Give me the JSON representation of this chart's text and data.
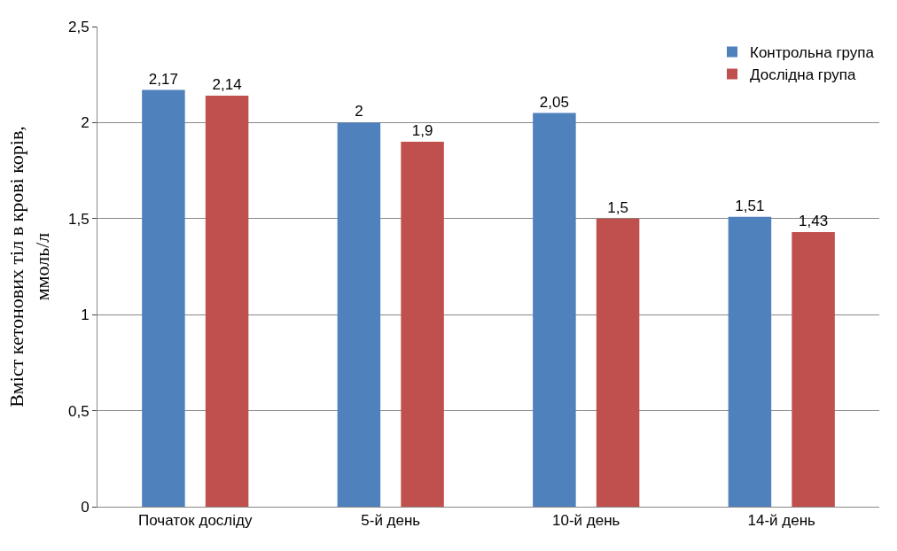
{
  "chart_data": {
    "type": "bar",
    "ylabel": "Вміст кетонових тіл в крові корів,\nммоль/л",
    "categories": [
      "Початок досліду",
      "5-й день",
      "10-й день",
      "14-й день"
    ],
    "series": [
      {
        "name": "Контрольна група",
        "color": "#4f81bd",
        "values": [
          2.17,
          2.0,
          2.05,
          1.51
        ],
        "value_labels": [
          "2,17",
          "2",
          "2,05",
          "1,51"
        ]
      },
      {
        "name": "Дослідна група",
        "color": "#c0504d",
        "values": [
          2.14,
          1.9,
          1.5,
          1.43
        ],
        "value_labels": [
          "2,14",
          "1,9",
          "1,5",
          "1,43"
        ]
      }
    ],
    "ylim": [
      0,
      2.5
    ],
    "yticks": [
      0,
      {
        "value": 0.5,
        "label": "0,5"
      },
      1,
      {
        "value": 1.5,
        "label": "1,5"
      },
      2,
      {
        "value": 2.5,
        "label": "2,5"
      }
    ],
    "grid": "y",
    "legend": "top right"
  }
}
